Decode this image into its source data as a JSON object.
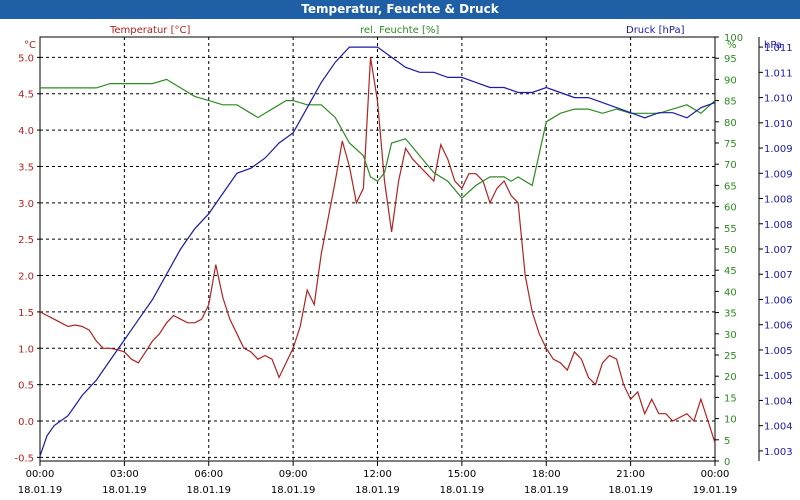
{
  "window": {
    "title": "Temperatur, Feuchte & Druck"
  },
  "chart_data": {
    "type": "line",
    "title": "Temperatur, Feuchte & Druck",
    "x": {
      "range": [
        "18.01.19 00:00",
        "19.01.19 00:00"
      ],
      "tick_times": [
        "00:00",
        "03:00",
        "06:00",
        "09:00",
        "12:00",
        "15:00",
        "18:00",
        "21:00",
        "00:00"
      ],
      "tick_dates": [
        "18.01.19",
        "18.01.19",
        "18.01.19",
        "18.01.19",
        "18.01.19",
        "18.01.19",
        "18.01.19",
        "18.01.19",
        "19.01.19"
      ]
    },
    "axes": {
      "left": {
        "label": "Temperatur [°C]",
        "unit": "°C",
        "ylim": [
          -0.55,
          5.28
        ],
        "ticks": [
          "5.0",
          "4.5",
          "4.0",
          "3.5",
          "3.0",
          "2.5",
          "2.0",
          "1.5",
          "1.0",
          "0.5",
          "0.0",
          "-0.5"
        ],
        "tick_values": [
          5.0,
          4.5,
          4.0,
          3.5,
          3.0,
          2.5,
          2.0,
          1.5,
          1.0,
          0.5,
          0.0,
          -0.5
        ],
        "color": "#b22222"
      },
      "mid": {
        "label": "rel. Feuchte [%]",
        "unit": "%",
        "ylim": [
          0,
          100
        ],
        "ticks": [
          "100",
          "95",
          "90",
          "85",
          "80",
          "75",
          "70",
          "65",
          "60",
          "55",
          "50",
          "45",
          "40",
          "35",
          "30",
          "25",
          "20",
          "15",
          "10",
          "5",
          "0"
        ],
        "tick_values": [
          100,
          95,
          90,
          85,
          80,
          75,
          70,
          65,
          60,
          55,
          50,
          45,
          40,
          35,
          30,
          25,
          20,
          15,
          10,
          5,
          0
        ],
        "color": "#2e8b22"
      },
      "right": {
        "label": "Druck [hPa]",
        "unit": "hPa",
        "ylim": [
          1002.8,
          1011.2
        ],
        "ticks": [
          "1.011",
          "1.011",
          "1.010",
          "1.010",
          "1.009",
          "1.009",
          "1.008",
          "1.008",
          "1.007",
          "1.007",
          "1.006",
          "1.006",
          "1.005",
          "1.005",
          "1.004",
          "1.004",
          "1.003",
          "1.003"
        ],
        "tick_values": [
          1011.0,
          1010.5,
          1010.0,
          1009.5,
          1009.0,
          1008.5,
          1008.0,
          1007.5,
          1007.0,
          1006.5,
          1006.0,
          1005.5,
          1005.0,
          1004.5,
          1004.0,
          1003.5,
          1003.0,
          1002.5
        ],
        "color": "#1a1aa8"
      }
    },
    "grid": true,
    "series": [
      {
        "name": "Temperatur [°C]",
        "axis": "left",
        "color": "#b22222",
        "x": [
          0,
          0.25,
          0.5,
          0.75,
          1,
          1.25,
          1.5,
          1.75,
          2,
          2.25,
          2.5,
          2.75,
          3,
          3.25,
          3.5,
          3.75,
          4,
          4.25,
          4.5,
          4.75,
          5,
          5.25,
          5.5,
          5.75,
          6,
          6.25,
          6.5,
          6.75,
          7,
          7.25,
          7.5,
          7.75,
          8,
          8.25,
          8.5,
          8.75,
          9,
          9.25,
          9.5,
          9.75,
          10,
          10.25,
          10.5,
          10.75,
          11,
          11.25,
          11.5,
          11.75,
          12,
          12.25,
          12.5,
          12.75,
          13,
          13.25,
          13.5,
          13.75,
          14,
          14.25,
          14.5,
          14.75,
          15,
          15.25,
          15.5,
          15.75,
          16,
          16.25,
          16.5,
          16.75,
          17,
          17.25,
          17.5,
          17.75,
          18,
          18.25,
          18.5,
          18.75,
          19,
          19.25,
          19.5,
          19.75,
          20,
          20.25,
          20.5,
          20.75,
          21,
          21.25,
          21.5,
          21.75,
          22,
          22.25,
          22.5,
          22.75,
          23,
          23.25,
          23.5,
          23.75,
          24
        ],
        "values": [
          1.5,
          1.45,
          1.4,
          1.35,
          1.3,
          1.32,
          1.3,
          1.25,
          1.1,
          1.0,
          1.0,
          0.98,
          0.95,
          0.85,
          0.8,
          0.95,
          1.1,
          1.2,
          1.35,
          1.45,
          1.4,
          1.35,
          1.35,
          1.4,
          1.6,
          2.15,
          1.7,
          1.4,
          1.2,
          1.0,
          0.95,
          0.85,
          0.9,
          0.85,
          0.6,
          0.8,
          1.0,
          1.3,
          1.8,
          1.6,
          2.3,
          2.8,
          3.3,
          3.85,
          3.5,
          3.0,
          3.2,
          5.0,
          4.4,
          3.3,
          2.6,
          3.3,
          3.75,
          3.6,
          3.5,
          3.4,
          3.3,
          3.8,
          3.6,
          3.3,
          3.2,
          3.4,
          3.4,
          3.3,
          3.0,
          3.2,
          3.3,
          3.1,
          3.0,
          2.0,
          1.5,
          1.2,
          1.0,
          0.85,
          0.8,
          0.7,
          0.95,
          0.85,
          0.6,
          0.5,
          0.8,
          0.9,
          0.85,
          0.5,
          0.3,
          0.4,
          0.1,
          0.3,
          0.1,
          0.1,
          0.0,
          0.05,
          0.1,
          0.0,
          0.3,
          0.0,
          -0.3
        ]
      },
      {
        "name": "rel. Feuchte [%]",
        "axis": "mid",
        "color": "#2e8b22",
        "x": [
          0,
          0.5,
          1,
          1.5,
          2,
          2.5,
          3,
          3.5,
          4,
          4.5,
          5,
          5.5,
          6,
          6.5,
          7,
          7.5,
          7.75,
          8,
          8.5,
          8.75,
          9,
          9.5,
          10,
          10.5,
          11,
          11.5,
          11.75,
          12,
          12.25,
          12.5,
          13,
          13.5,
          14,
          14.5,
          15,
          15.5,
          16,
          16.5,
          16.75,
          17,
          17.25,
          17.5,
          18,
          18.5,
          19,
          19.5,
          20,
          20.5,
          21,
          21.5,
          22,
          22.5,
          23,
          23.5,
          24
        ],
        "values": [
          88,
          88,
          88,
          88,
          88,
          89,
          89,
          89,
          89,
          90,
          88,
          86,
          85,
          84,
          84,
          82,
          81,
          82,
          84,
          85,
          85,
          84,
          84,
          81,
          75,
          72,
          67,
          66,
          68,
          75,
          76,
          72,
          68,
          66,
          62,
          65,
          67,
          67,
          66,
          67,
          66,
          65,
          80,
          82,
          83,
          83,
          82,
          83,
          82,
          82,
          82,
          83,
          84,
          82,
          85
        ]
      },
      {
        "name": "Druck [hPa]",
        "axis": "right",
        "color": "#1a1aa8",
        "x": [
          0,
          0.25,
          0.5,
          1,
          1.5,
          2,
          2.5,
          3,
          3.5,
          4,
          4.5,
          5,
          5.5,
          6,
          6.5,
          7,
          7.5,
          8,
          8.5,
          9,
          9.5,
          10,
          10.5,
          11,
          11.5,
          12,
          12.5,
          13,
          13.5,
          14,
          14.5,
          15,
          15.5,
          16,
          16.5,
          17,
          17.5,
          18,
          18.5,
          19,
          19.5,
          20,
          20.5,
          21,
          21.5,
          22,
          22.5,
          23,
          23.5,
          24
        ],
        "values": [
          1002.9,
          1003.3,
          1003.5,
          1003.7,
          1004.1,
          1004.4,
          1004.8,
          1005.2,
          1005.6,
          1006.0,
          1006.5,
          1007.0,
          1007.4,
          1007.7,
          1008.1,
          1008.5,
          1008.6,
          1008.8,
          1009.1,
          1009.3,
          1009.8,
          1010.3,
          1010.7,
          1011.0,
          1011.0,
          1011.0,
          1010.8,
          1010.6,
          1010.5,
          1010.5,
          1010.4,
          1010.4,
          1010.3,
          1010.2,
          1010.2,
          1010.1,
          1010.1,
          1010.2,
          1010.1,
          1010.0,
          1010.0,
          1009.9,
          1009.8,
          1009.7,
          1009.6,
          1009.7,
          1009.7,
          1009.6,
          1009.8,
          1009.9
        ]
      }
    ]
  }
}
